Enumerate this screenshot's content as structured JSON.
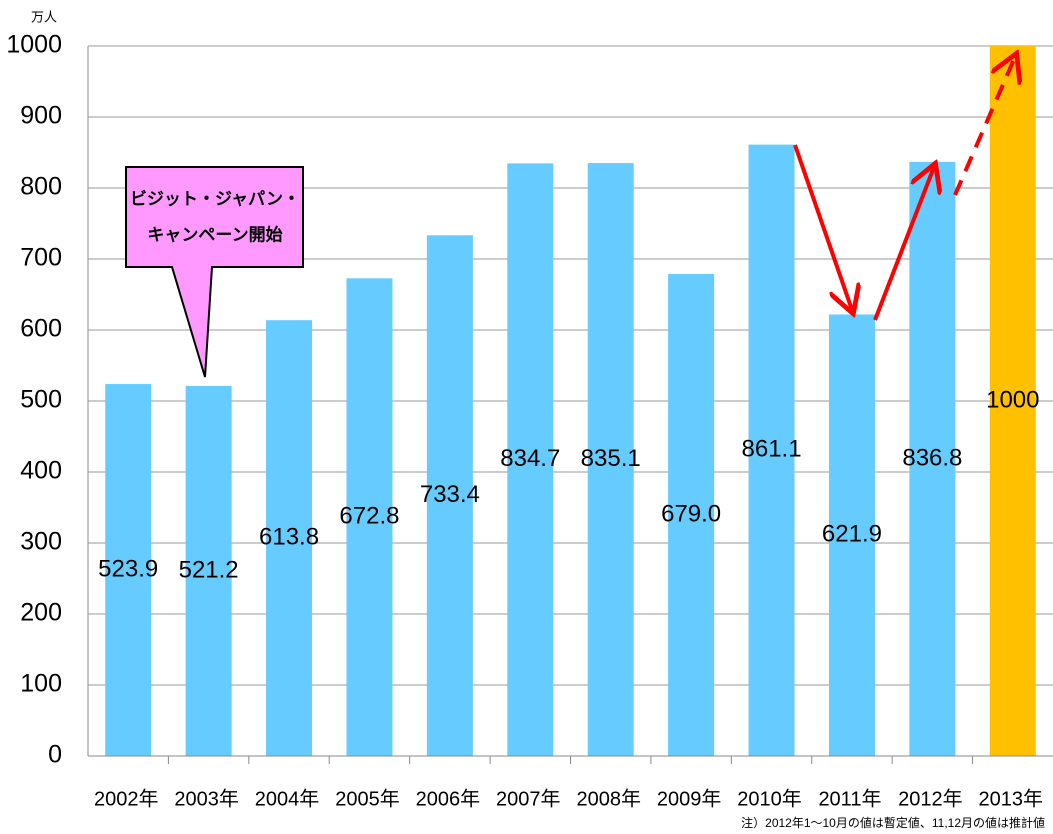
{
  "chart_data": {
    "type": "bar",
    "y_axis_label": "万人",
    "categories": [
      "2002年",
      "2003年",
      "2004年",
      "2005年",
      "2006年",
      "2007年",
      "2008年",
      "2009年",
      "2010年",
      "2011年",
      "2012年",
      "2013年"
    ],
    "values": [
      523.9,
      521.2,
      613.8,
      672.8,
      733.4,
      834.7,
      835.1,
      679.0,
      861.1,
      621.9,
      836.8,
      1000
    ],
    "value_labels": [
      "523.9",
      "521.2",
      "613.8",
      "672.8",
      "733.4",
      "834.7",
      "835.1",
      "679.0",
      "861.1",
      "621.9",
      "836.8",
      "1000"
    ],
    "colors": [
      "#66ccff",
      "#66ccff",
      "#66ccff",
      "#66ccff",
      "#66ccff",
      "#66ccff",
      "#66ccff",
      "#66ccff",
      "#66ccff",
      "#66ccff",
      "#66ccff",
      "#ffc000"
    ],
    "ylim": [
      0,
      1000
    ],
    "yticks": [
      0,
      100,
      200,
      300,
      400,
      500,
      600,
      700,
      800,
      900,
      1000
    ],
    "grid": true,
    "annotation": [
      "ビジット・ジャパン・",
      "キャンペーン開始"
    ],
    "note": "注）2012年1～10月の値は暫定値、11,12月の値は推計値"
  }
}
